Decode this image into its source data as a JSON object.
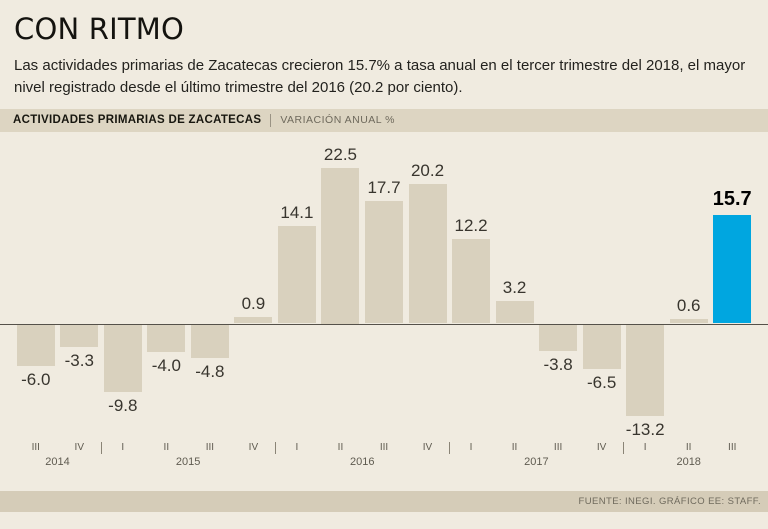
{
  "header": {
    "title": "CON RITMO",
    "description": "Las actividades primarias de Zacatecas crecieron 15.7% a tasa anual en el tercer trimestre del 2018, el mayor nivel registrado desde el último trimestre del 2016 (20.2 por ciento)."
  },
  "chart_header": {
    "title": "ACTIVIDADES PRIMARIAS DE ZACATECAS",
    "unit": "VARIACIÓN ANUAL %"
  },
  "footer": {
    "source": "FUENTE: INEGI. GRÁFICO EE: STAFF."
  },
  "chart_data": {
    "type": "bar",
    "title": "ACTIVIDADES PRIMARIAS DE ZACATECAS",
    "ylabel": "VARIACIÓN ANUAL %",
    "categories": [
      "III",
      "IV",
      "I",
      "II",
      "III",
      "IV",
      "I",
      "II",
      "III",
      "IV",
      "I",
      "II",
      "III",
      "IV",
      "I",
      "II",
      "III"
    ],
    "year_groups": [
      {
        "year": "2014",
        "count": 2
      },
      {
        "year": "2015",
        "count": 4
      },
      {
        "year": "2016",
        "count": 4
      },
      {
        "year": "2017",
        "count": 4
      },
      {
        "year": "2018",
        "count": 3
      }
    ],
    "values": [
      -6.0,
      -3.3,
      -9.8,
      -4.0,
      -4.8,
      0.9,
      14.1,
      22.5,
      17.7,
      20.2,
      12.2,
      3.2,
      -3.8,
      -6.5,
      -13.2,
      0.6,
      15.7
    ],
    "labels": [
      "-6.0",
      "-3.3",
      "-9.8",
      "-4.0",
      "-4.8",
      "0.9",
      "14.1",
      "22.5",
      "17.7",
      "20.2",
      "12.2",
      "3.2",
      "-3.8",
      "-6.5",
      "-13.2",
      "0.6",
      "15.7"
    ],
    "highlight_index": 16,
    "bar_color": "#d9d1be",
    "highlight_color": "#00a6e0",
    "ylim": [
      -16,
      25
    ],
    "grid": false,
    "legend": "none"
  }
}
